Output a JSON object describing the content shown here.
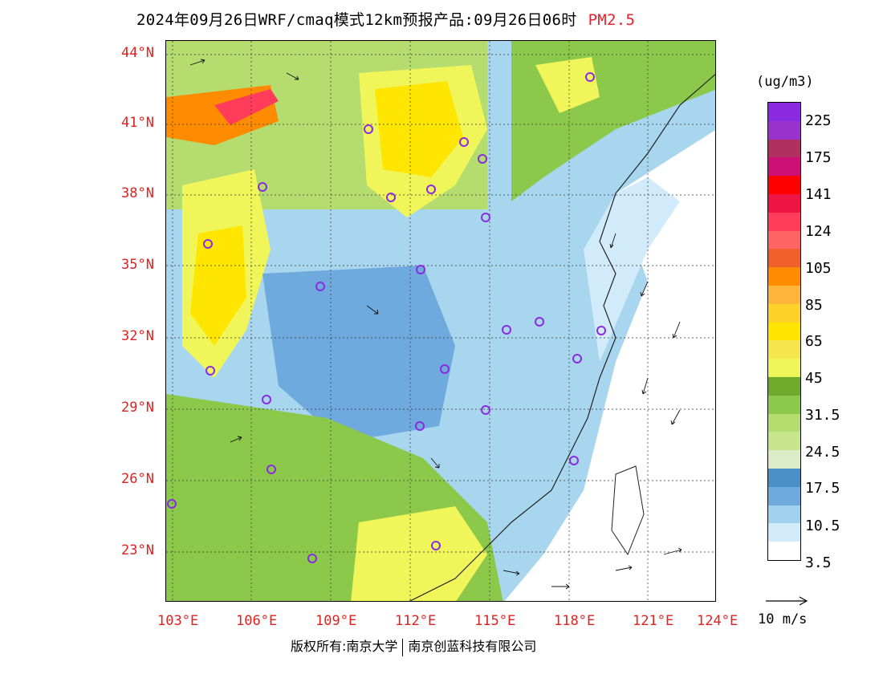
{
  "title": {
    "main": "2024年09月26日WRF/cmaq模式12km预报产品:09月26日06时",
    "pollutant": "PM2.5"
  },
  "map": {
    "lat_labels": [
      "44°N",
      "41°N",
      "38°N",
      "35°N",
      "32°N",
      "29°N",
      "26°N",
      "23°N"
    ],
    "lon_labels": [
      "103°E",
      "106°E",
      "109°E",
      "112°E",
      "115°E",
      "118°E",
      "121°E",
      "124°E"
    ],
    "colors": {
      "label": "#dd2222",
      "station_marker": "#8a2be2"
    }
  },
  "legend": {
    "unit": "(ug/m3)",
    "colors": [
      "#8a2be2",
      "#9a32cd",
      "#b03060",
      "#cd1076",
      "#ff0000",
      "#ee1444",
      "#ff3c5a",
      "#ff6464",
      "#f0602a",
      "#ff8c00",
      "#ffb43c",
      "#ffd22a",
      "#ffe600",
      "#f5e650",
      "#f0f55a",
      "#6faa2a",
      "#8cc84a",
      "#b4dc6e",
      "#c8e68c",
      "#dcebc8",
      "#4a90c8",
      "#6eaade",
      "#a0d2f0",
      "#d2ebfa",
      "#ffffff"
    ],
    "labels": [
      "225",
      "175",
      "141",
      "124",
      "105",
      "85",
      "65",
      "45",
      "31.5",
      "24.5",
      "17.5",
      "10.5",
      "3.5"
    ],
    "wind_reference": "10 m/s"
  },
  "footer": {
    "copyright": "版权所有:南京大学",
    "company": "南京创蓝科技有限公司"
  }
}
